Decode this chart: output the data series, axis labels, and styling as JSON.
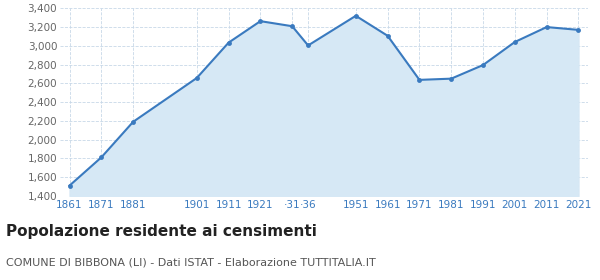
{
  "years": [
    1861,
    1871,
    1881,
    1901,
    1911,
    1921,
    1931,
    1936,
    1951,
    1961,
    1971,
    1981,
    1991,
    2001,
    2011,
    2021
  ],
  "population": [
    1511,
    1812,
    2191,
    2658,
    3035,
    3264,
    3210,
    3005,
    3321,
    3108,
    2638,
    2651,
    2796,
    3042,
    3201,
    3171
  ],
  "x_tick_positions": [
    1861,
    1871,
    1881,
    1901,
    1911,
    1921,
    1931,
    1936,
    1951,
    1961,
    1971,
    1981,
    1991,
    2001,
    2011,
    2021
  ],
  "x_tick_labels": [
    "1861",
    "1871",
    "1881",
    "1901",
    "1911",
    "1921",
    "‧31",
    "‧36",
    "1951",
    "1961",
    "1971",
    "1981",
    "1991",
    "2001",
    "2011",
    "2021"
  ],
  "ylim": [
    1400,
    3400
  ],
  "yticks": [
    1400,
    1600,
    1800,
    2000,
    2200,
    2400,
    2600,
    2800,
    3000,
    3200,
    3400
  ],
  "line_color": "#3a7abf",
  "fill_color": "#d6e8f5",
  "marker_color": "#3a7abf",
  "bg_color": "#ffffff",
  "grid_color": "#c8d8e8",
  "title": "Popolazione residente ai censimenti",
  "subtitle": "COMUNE DI BIBBONA (LI) - Dati ISTAT - Elaborazione TUTTITALIA.IT",
  "title_fontsize": 11,
  "subtitle_fontsize": 8,
  "tick_label_color": "#3a7abf",
  "ytick_label_color": "#666666"
}
